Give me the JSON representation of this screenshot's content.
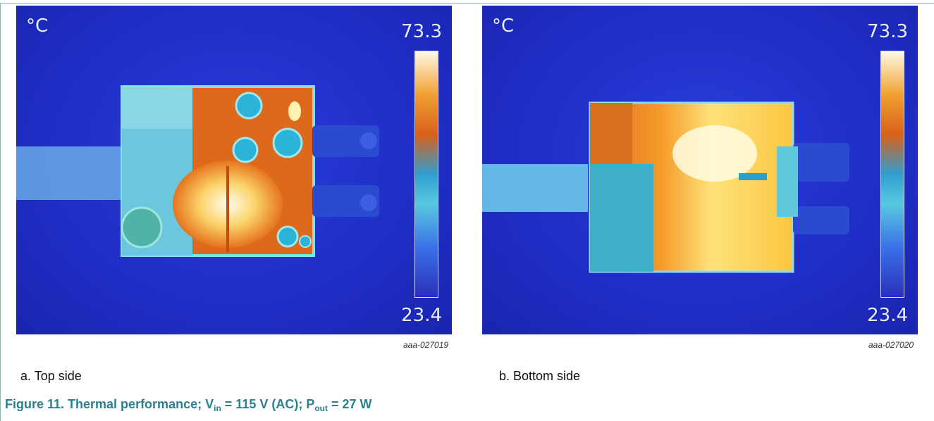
{
  "panels": [
    {
      "unit": "°C",
      "max": "73.3",
      "min": "23.4",
      "image_id": "aaa-027019",
      "caption": "a. Top side"
    },
    {
      "unit": "°C",
      "max": "73.3",
      "min": "23.4",
      "image_id": "aaa-027020",
      "caption": "b. Bottom side"
    }
  ],
  "figure_caption": {
    "prefix": "Figure 11.  Thermal performance; V",
    "sub1": "in",
    "middle": " = 115 V (AC); P",
    "sub2": "out",
    "suffix": " = 27 W"
  },
  "colors": {
    "caption": "#2e7f8c",
    "background_blue": "#1f2fc8",
    "hot": "#fff7b0",
    "warm": "#e06a1e",
    "cool": "#58c9e0"
  }
}
